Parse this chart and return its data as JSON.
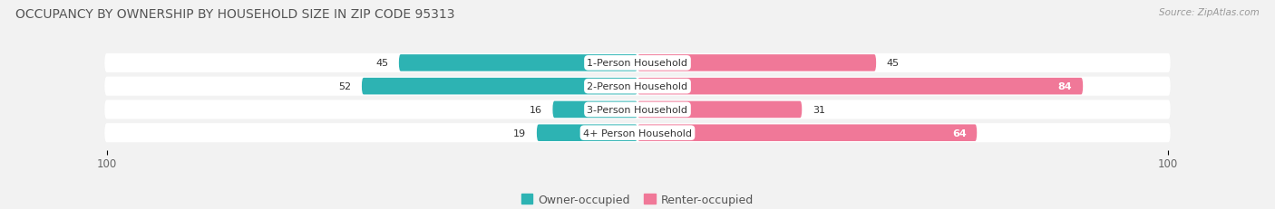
{
  "title": "OCCUPANCY BY OWNERSHIP BY HOUSEHOLD SIZE IN ZIP CODE 95313",
  "source": "Source: ZipAtlas.com",
  "categories": [
    "1-Person Household",
    "2-Person Household",
    "3-Person Household",
    "4+ Person Household"
  ],
  "owner_values": [
    45,
    52,
    16,
    19
  ],
  "renter_values": [
    45,
    84,
    31,
    64
  ],
  "owner_color": "#2db3b3",
  "renter_color": "#f07898",
  "owner_label": "Owner-occupied",
  "renter_label": "Renter-occupied",
  "axis_max": 100,
  "bg_color": "#f2f2f2",
  "bar_row_color": "#e4e4e4",
  "title_fontsize": 10,
  "source_fontsize": 7.5,
  "value_fontsize": 8,
  "cat_fontsize": 8,
  "tick_fontsize": 8.5,
  "legend_fontsize": 9
}
